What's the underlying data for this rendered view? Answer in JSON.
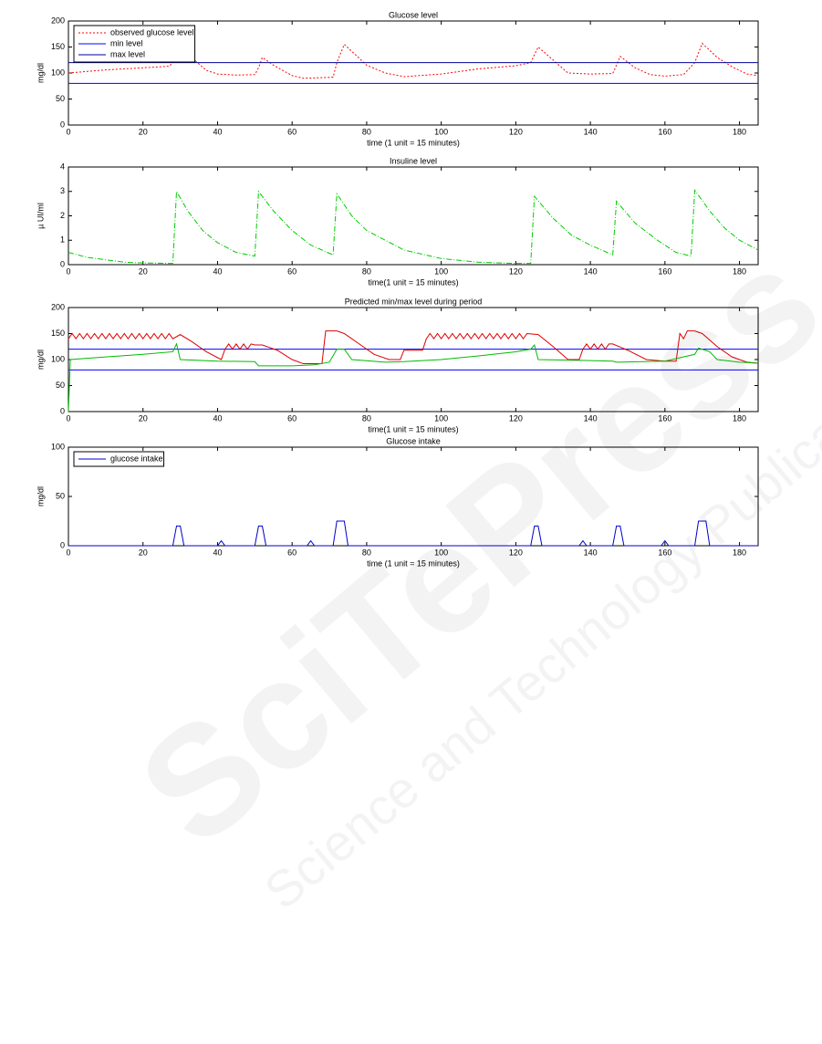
{
  "chart_data": [
    {
      "type": "line",
      "title": "Glucose level",
      "x_label": "time (1 unit = 15 minutes)",
      "y_label": "mg/dl",
      "xlim": [
        0,
        185
      ],
      "xticks": [
        0,
        20,
        40,
        60,
        80,
        100,
        120,
        140,
        160,
        180
      ],
      "ylim": [
        0,
        200
      ],
      "yticks": [
        0,
        50,
        100,
        150,
        200
      ],
      "legend": "upper left",
      "series": [
        {
          "name": "observed glucose level",
          "color": "#ff0000",
          "linestyle": "dotted",
          "x": [
            0,
            10,
            20,
            27,
            28,
            30,
            33,
            37,
            40,
            45,
            50,
            51,
            52,
            55,
            60,
            63,
            68,
            71,
            72,
            74,
            77,
            80,
            85,
            90,
            100,
            105,
            110,
            120,
            124,
            126,
            130,
            134,
            140,
            146,
            147,
            148,
            152,
            156,
            160,
            165,
            168,
            170,
            174,
            178,
            182,
            185
          ],
          "values": [
            100,
            106,
            110,
            113,
            120,
            148,
            130,
            105,
            98,
            96,
            97,
            110,
            130,
            115,
            95,
            90,
            91,
            92,
            120,
            155,
            135,
            115,
            100,
            93,
            98,
            103,
            108,
            114,
            120,
            150,
            125,
            100,
            98,
            99,
            115,
            132,
            110,
            97,
            94,
            97,
            120,
            157,
            130,
            112,
            98,
            95
          ]
        },
        {
          "name": "min level",
          "color": "#0000ff",
          "linestyle": "solid",
          "x": [
            0,
            185
          ],
          "values": [
            80,
            80
          ]
        },
        {
          "name": "max level",
          "color": "#000099",
          "linestyle": "solid",
          "x": [
            0,
            185
          ],
          "values": [
            120,
            120
          ]
        }
      ]
    },
    {
      "type": "line",
      "title": "Insuline level",
      "x_label": "time(1 unit = 15 minutes)",
      "y_label": "µ UI/ml",
      "xlim": [
        0,
        185
      ],
      "xticks": [
        0,
        20,
        40,
        60,
        80,
        100,
        120,
        140,
        160,
        180
      ],
      "ylim": [
        0,
        4
      ],
      "yticks": [
        0,
        1,
        2,
        3,
        4
      ],
      "series": [
        {
          "color": "#00cc00",
          "linestyle": "dashdot",
          "x": [
            0,
            5,
            10,
            15,
            20,
            28,
            29,
            32,
            36,
            40,
            45,
            50,
            51,
            55,
            60,
            65,
            71,
            72,
            76,
            80,
            90,
            100,
            110,
            120,
            124,
            125,
            130,
            135,
            140,
            146,
            147,
            152,
            158,
            163,
            167,
            168,
            172,
            176,
            180,
            185
          ],
          "values": [
            0.5,
            0.3,
            0.2,
            0.1,
            0.07,
            0.05,
            3,
            2.2,
            1.4,
            0.9,
            0.5,
            0.35,
            3,
            2.2,
            1.4,
            0.8,
            0.4,
            2.9,
            2,
            1.4,
            0.6,
            0.25,
            0.1,
            0.05,
            0.05,
            2.8,
            1.9,
            1.2,
            0.8,
            0.4,
            2.6,
            1.7,
            1,
            0.5,
            0.35,
            3.05,
            2.2,
            1.5,
            1,
            0.6
          ]
        }
      ]
    },
    {
      "type": "line",
      "title": "Predicted min/max level during period",
      "x_label": "time(1 unit = 15 minutes)",
      "y_label": "mg/dl",
      "xlim": [
        0,
        185
      ],
      "xticks": [
        0,
        20,
        40,
        60,
        80,
        100,
        120,
        140,
        160,
        180
      ],
      "ylim": [
        0,
        200
      ],
      "yticks": [
        0,
        50,
        100,
        150,
        200
      ],
      "series": [
        {
          "color": "#0000ff",
          "linestyle": "solid",
          "x": [
            0,
            185
          ],
          "values": [
            80,
            80
          ]
        },
        {
          "color": "#0000ff",
          "linestyle": "solid",
          "x": [
            0,
            185
          ],
          "values": [
            120,
            120
          ]
        },
        {
          "color": "#dd0000",
          "linestyle": "solid",
          "x": [
            0,
            1,
            2,
            3,
            4,
            5,
            6,
            7,
            8,
            9,
            10,
            11,
            12,
            13,
            14,
            15,
            16,
            17,
            18,
            19,
            20,
            21,
            22,
            23,
            24,
            25,
            26,
            27,
            28,
            30,
            33,
            37,
            41,
            42,
            43,
            44,
            45,
            46,
            47,
            48,
            49,
            50,
            52,
            56,
            60,
            63,
            68,
            69,
            72,
            74,
            78,
            82,
            86,
            89,
            90,
            95,
            96,
            97,
            98,
            99,
            100,
            101,
            102,
            103,
            104,
            105,
            106,
            107,
            108,
            109,
            110,
            111,
            112,
            113,
            114,
            115,
            116,
            117,
            118,
            119,
            120,
            121,
            122,
            123,
            126,
            130,
            134,
            137,
            138,
            139,
            140,
            141,
            142,
            143,
            144,
            145,
            146,
            150,
            155,
            160,
            163,
            164,
            165,
            166,
            168,
            170,
            174,
            178,
            182,
            185
          ],
          "values": [
            140,
            150,
            140,
            150,
            140,
            150,
            140,
            150,
            140,
            150,
            140,
            150,
            140,
            150,
            140,
            150,
            140,
            150,
            140,
            150,
            140,
            150,
            140,
            150,
            140,
            150,
            140,
            150,
            140,
            148,
            135,
            115,
            100,
            120,
            130,
            120,
            130,
            120,
            130,
            120,
            130,
            128,
            128,
            118,
            100,
            92,
            92,
            155,
            155,
            150,
            130,
            110,
            100,
            100,
            118,
            118,
            140,
            150,
            140,
            150,
            140,
            150,
            140,
            150,
            140,
            150,
            140,
            150,
            140,
            150,
            140,
            150,
            140,
            150,
            140,
            150,
            140,
            150,
            140,
            150,
            140,
            150,
            140,
            150,
            148,
            125,
            100,
            100,
            120,
            130,
            120,
            130,
            120,
            130,
            120,
            130,
            130,
            118,
            100,
            97,
            97,
            150,
            140,
            155,
            155,
            150,
            125,
            105,
            95,
            93
          ]
        },
        {
          "color": "#00bb00",
          "linestyle": "solid",
          "x": [
            0,
            0.5,
            10,
            20,
            28,
            29,
            30,
            40,
            50,
            51,
            60,
            66,
            70,
            72,
            74,
            76,
            85,
            90,
            100,
            110,
            120,
            124,
            125,
            126,
            140,
            146,
            147,
            160,
            168,
            169,
            172,
            174,
            180,
            185
          ],
          "values": [
            0,
            100,
            105,
            110,
            115,
            130,
            100,
            97,
            96,
            88,
            88,
            90,
            95,
            120,
            120,
            100,
            95,
            96,
            100,
            107,
            115,
            120,
            128,
            100,
            98,
            97,
            95,
            97,
            110,
            122,
            115,
            100,
            95,
            93
          ]
        }
      ]
    },
    {
      "type": "line",
      "title": "Glucose intake",
      "x_label": "time (1 unit = 15 minutes)",
      "y_label": "mg/dl",
      "xlim": [
        0,
        185
      ],
      "xticks": [
        0,
        20,
        40,
        60,
        80,
        100,
        120,
        140,
        160,
        180
      ],
      "ylim": [
        0,
        100
      ],
      "yticks": [
        0,
        50,
        100
      ],
      "legend": "upper left",
      "series": [
        {
          "name": "glucose intake",
          "color": "#0000cc",
          "linestyle": "solid",
          "x": [
            0,
            28,
            29,
            30,
            31,
            40,
            41,
            42,
            50,
            51,
            52,
            53,
            64,
            65,
            66,
            71,
            72,
            74,
            75,
            124,
            125,
            126,
            127,
            137,
            138,
            139,
            146,
            147,
            148,
            149,
            159,
            160,
            161,
            168,
            169,
            171,
            172,
            185
          ],
          "values": [
            0,
            0,
            20,
            20,
            0,
            0,
            5,
            0,
            0,
            20,
            20,
            0,
            0,
            5,
            0,
            0,
            25,
            25,
            0,
            0,
            20,
            20,
            0,
            0,
            5,
            0,
            0,
            20,
            20,
            0,
            0,
            5,
            0,
            0,
            25,
            25,
            0,
            0
          ]
        }
      ]
    }
  ],
  "watermark": {
    "title": "SciTePress",
    "subtitle": "Science and Technology Publications"
  }
}
